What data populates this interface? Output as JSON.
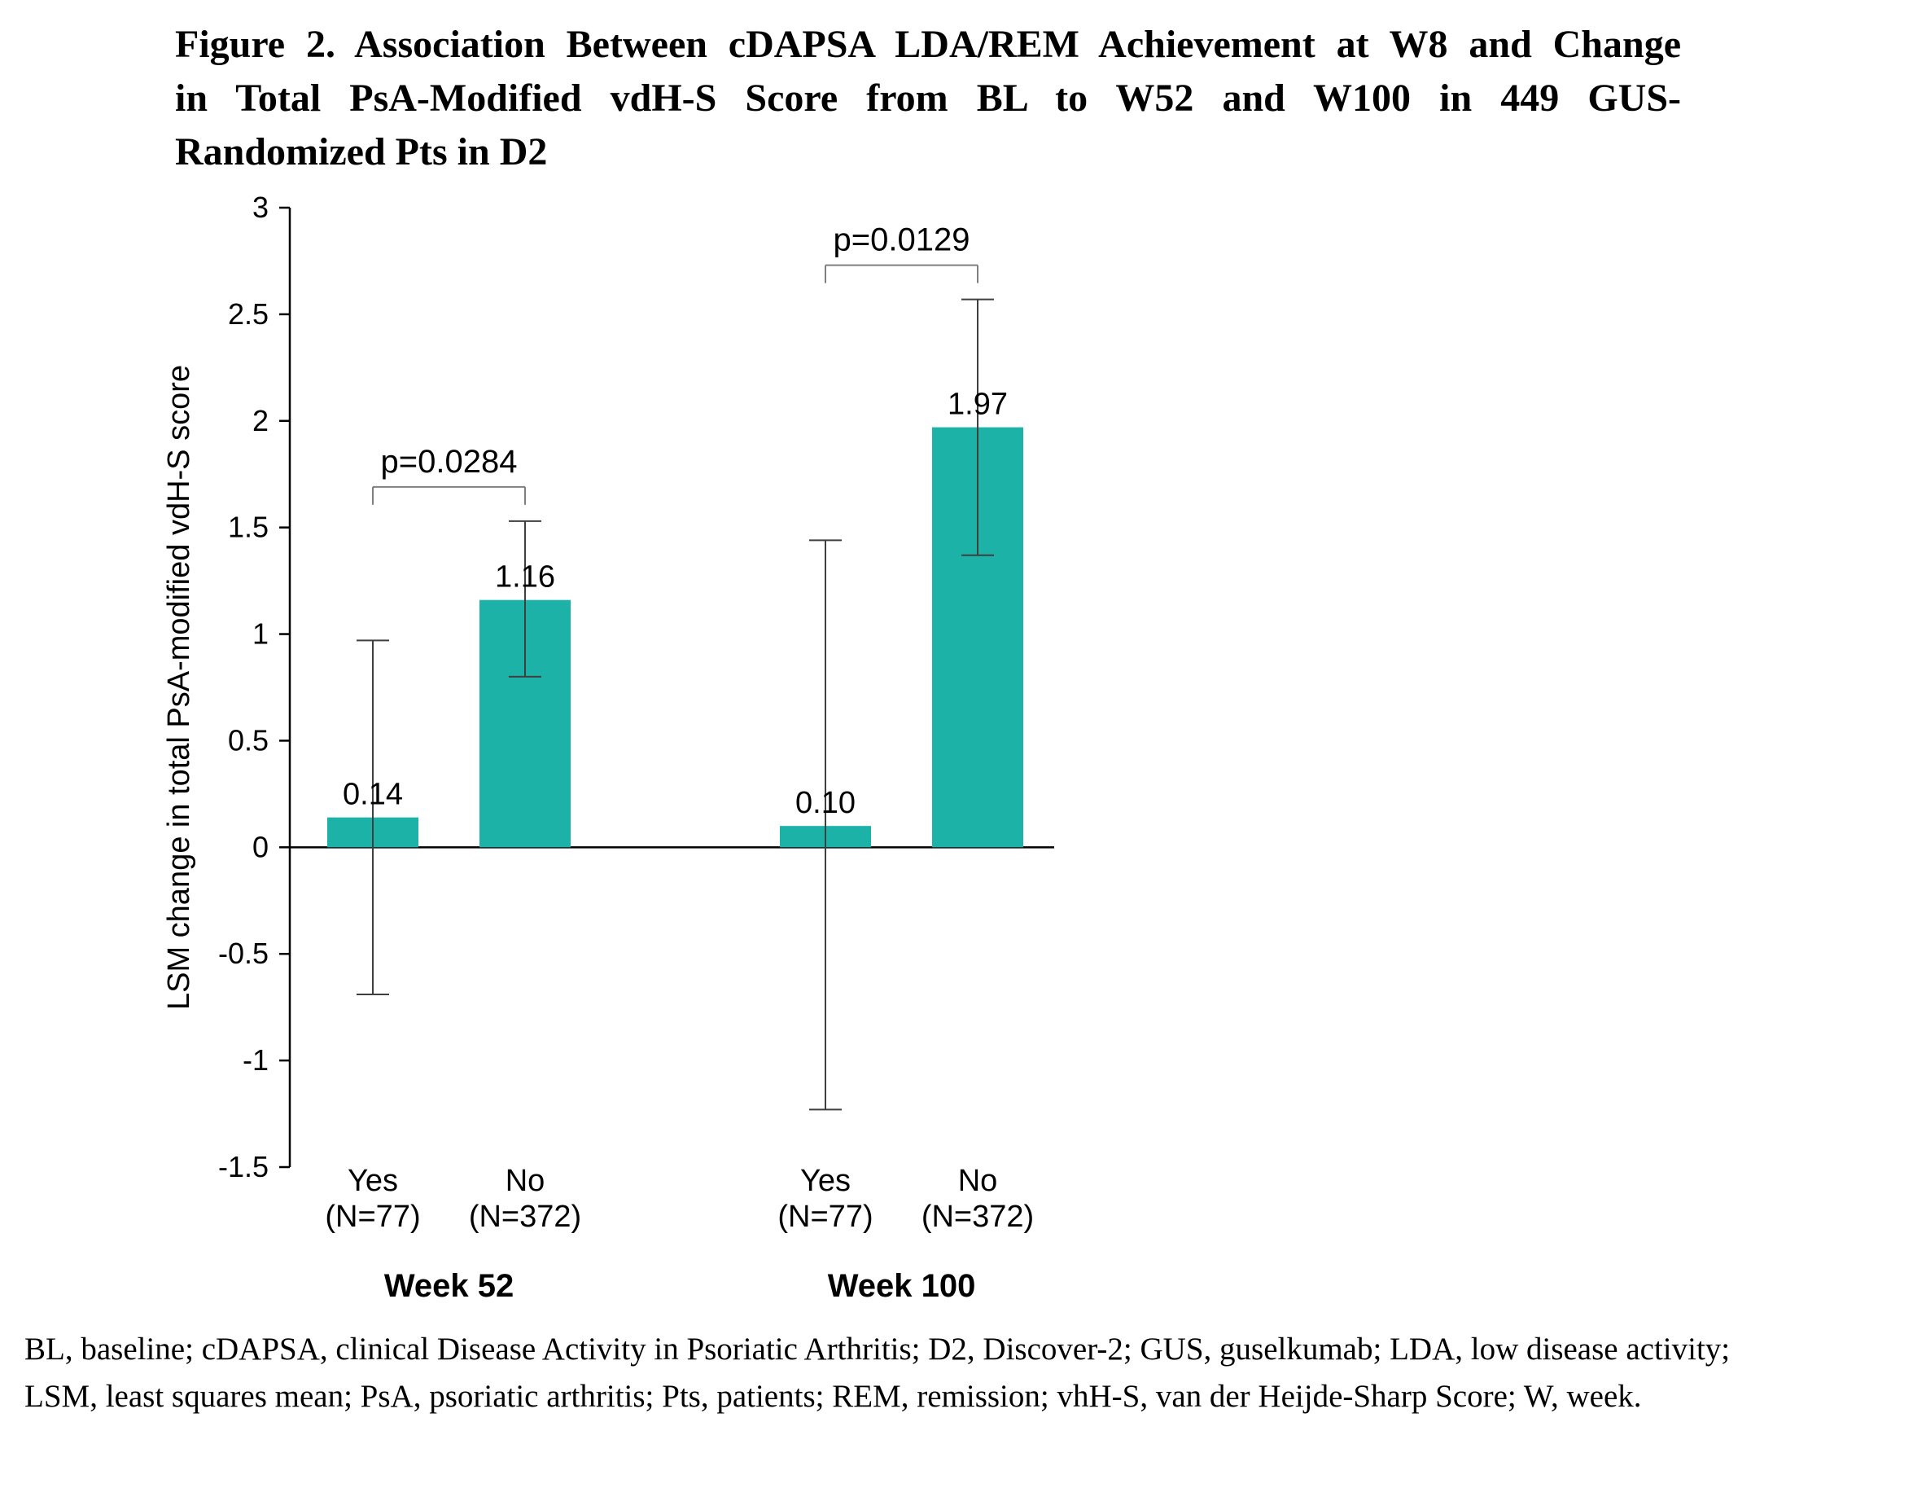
{
  "figure": {
    "title_lines": [
      "Figure 2. Association Between cDAPSA LDA/REM Achievement at W8 and Change",
      "in Total PsA-Modified vdH-S Score from BL to W52 and W100 in 449 GUS-",
      "Randomized Pts in D2"
    ],
    "footnote_lines": [
      "BL, baseline; cDAPSA, clinical Disease Activity in Psoriatic Arthritis; D2, Discover-2; GUS, guselkumab; LDA, low disease activity;",
      "LSM, least squares mean; PsA, psoriatic arthritis; Pts, patients; REM, remission; vhH-S, van der Heijde-Sharp Score; W, week."
    ]
  },
  "chart_data": {
    "type": "bar",
    "title": "Figure 2. Association Between cDAPSA LDA/REM Achievement at W8 and Change in Total PsA-Modified vdH-S Score from BL to W52 and W100 in 449 GUS-Randomized Pts in D2",
    "ylabel": "LSM change in total PsA-modified vdH-S score",
    "xlabel": "",
    "ylim": [
      -1.5,
      3
    ],
    "yticks": [
      3,
      2.5,
      2,
      1.5,
      1,
      0.5,
      0,
      -0.5,
      -1,
      -1.5
    ],
    "grid": false,
    "legend": "none",
    "bar_color": "#1cb2a8",
    "error_bar_color": "#3f3f3f",
    "bracket_color": "#7f7f7f",
    "groups": [
      {
        "label": "Week 52",
        "p_value": "p=0.0284",
        "bars": [
          {
            "category": "Yes",
            "n_label": "(N=77)",
            "value": 0.14,
            "value_label": "0.14",
            "ci_low": -0.69,
            "ci_high": 0.97
          },
          {
            "category": "No",
            "n_label": "(N=372)",
            "value": 1.16,
            "value_label": "1.16",
            "ci_low": 0.8,
            "ci_high": 1.53
          }
        ]
      },
      {
        "label": "Week 100",
        "p_value": "p=0.0129",
        "bars": [
          {
            "category": "Yes",
            "n_label": "(N=77)",
            "value": 0.1,
            "value_label": "0.10",
            "ci_low": -1.23,
            "ci_high": 1.44
          },
          {
            "category": "No",
            "n_label": "(N=372)",
            "value": 1.97,
            "value_label": "1.97",
            "ci_low": 1.37,
            "ci_high": 2.57
          }
        ]
      }
    ]
  }
}
